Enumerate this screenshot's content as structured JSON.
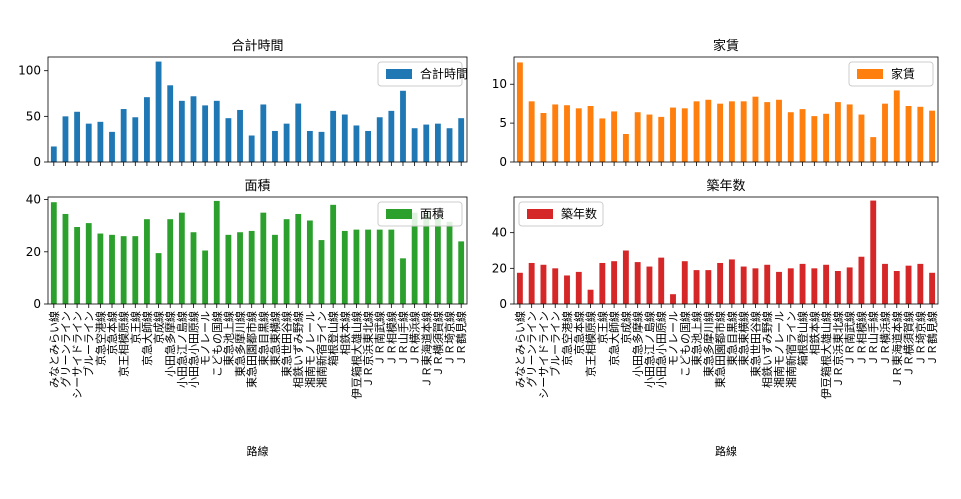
{
  "figure": {
    "xlabel": "路線"
  },
  "categories": [
    "みなとみらい線",
    "グリーンライン",
    "シーサイドライン",
    "ブルーライン",
    "京急空港線",
    "京急本線",
    "京王相模原線",
    "京王線",
    "京急大師線",
    "京成線",
    "小田急多摩線",
    "小田急江ノ島線",
    "小田急小田原線",
    "モノレール",
    "こどもの国線",
    "東急池上線",
    "東急多摩川線",
    "東急田園都市線",
    "東急目黒線",
    "東急東横線",
    "東急世田谷線",
    "相鉄いずみ野線",
    "湘南モノレール",
    "湘南新宿ライン",
    "箱根登山線",
    "相鉄本線",
    "伊豆箱根大雄山線",
    "ＪＲ京浜東北線",
    "ＪＲ南武線",
    "ＪＲ相模線",
    "ＪＲ山手線",
    "ＪＲ横浜線",
    "ＪＲ東海道本線",
    "ＪＲ横須賀線",
    "ＪＲ埼京線",
    "ＪＲ鶴見線"
  ],
  "chart_data": [
    {
      "type": "bar",
      "title": "合計時間",
      "legend": "合計時間",
      "legend_position": "top-right",
      "color": "#1f77b4",
      "ylim": [
        0,
        115
      ],
      "yticks": [
        0,
        50,
        100
      ],
      "values": [
        17,
        50,
        55,
        42,
        44,
        33,
        58,
        49,
        71,
        110,
        84,
        67,
        72,
        62,
        67,
        48,
        57,
        29,
        63,
        34,
        42,
        64,
        34,
        33,
        56,
        52,
        40,
        34,
        49,
        56,
        78,
        37,
        41,
        42,
        37,
        48
      ]
    },
    {
      "type": "bar",
      "title": "家賃",
      "legend": "家賃",
      "legend_position": "top-right",
      "color": "#ff7f0e",
      "ylim": [
        0,
        13.5
      ],
      "yticks": [
        0,
        5,
        10
      ],
      "values": [
        12.8,
        7.8,
        6.3,
        7.4,
        7.3,
        6.9,
        7.2,
        5.6,
        6.5,
        3.6,
        6.4,
        6.1,
        5.8,
        7.0,
        6.9,
        7.8,
        8.0,
        7.5,
        7.8,
        7.8,
        8.4,
        7.7,
        8.0,
        6.4,
        6.8,
        5.9,
        6.2,
        7.7,
        7.4,
        6.1,
        3.2,
        7.5,
        9.2,
        7.2,
        7.1,
        6.6
      ]
    },
    {
      "type": "bar",
      "title": "面積",
      "legend": "面積",
      "legend_position": "top-right",
      "color": "#2ca02c",
      "ylim": [
        0,
        41
      ],
      "yticks": [
        0,
        20,
        40
      ],
      "values": [
        39,
        34.5,
        29.5,
        31,
        27,
        26.5,
        26,
        26,
        32.5,
        19.5,
        32.5,
        35,
        27.5,
        20.5,
        39.5,
        26.5,
        27.5,
        28,
        35,
        26.5,
        32.5,
        34.5,
        32,
        24.5,
        38,
        28,
        28.5,
        28.5,
        28.5,
        28.5,
        17.5,
        35,
        35,
        33,
        31.5,
        24
      ]
    },
    {
      "type": "bar",
      "title": "築年数",
      "legend": "築年数",
      "legend_position": "top-left",
      "color": "#d62728",
      "ylim": [
        0,
        60
      ],
      "yticks": [
        0,
        20,
        40
      ],
      "values": [
        17.5,
        23,
        22,
        20,
        16,
        18,
        8,
        23,
        24,
        30,
        23.5,
        21,
        26,
        5.5,
        24,
        19,
        19,
        23,
        25,
        21,
        20,
        22,
        18,
        20,
        22.5,
        20,
        22,
        18.5,
        20.5,
        26.5,
        58,
        22.5,
        18.5,
        21.5,
        22.5,
        17.5
      ]
    }
  ]
}
